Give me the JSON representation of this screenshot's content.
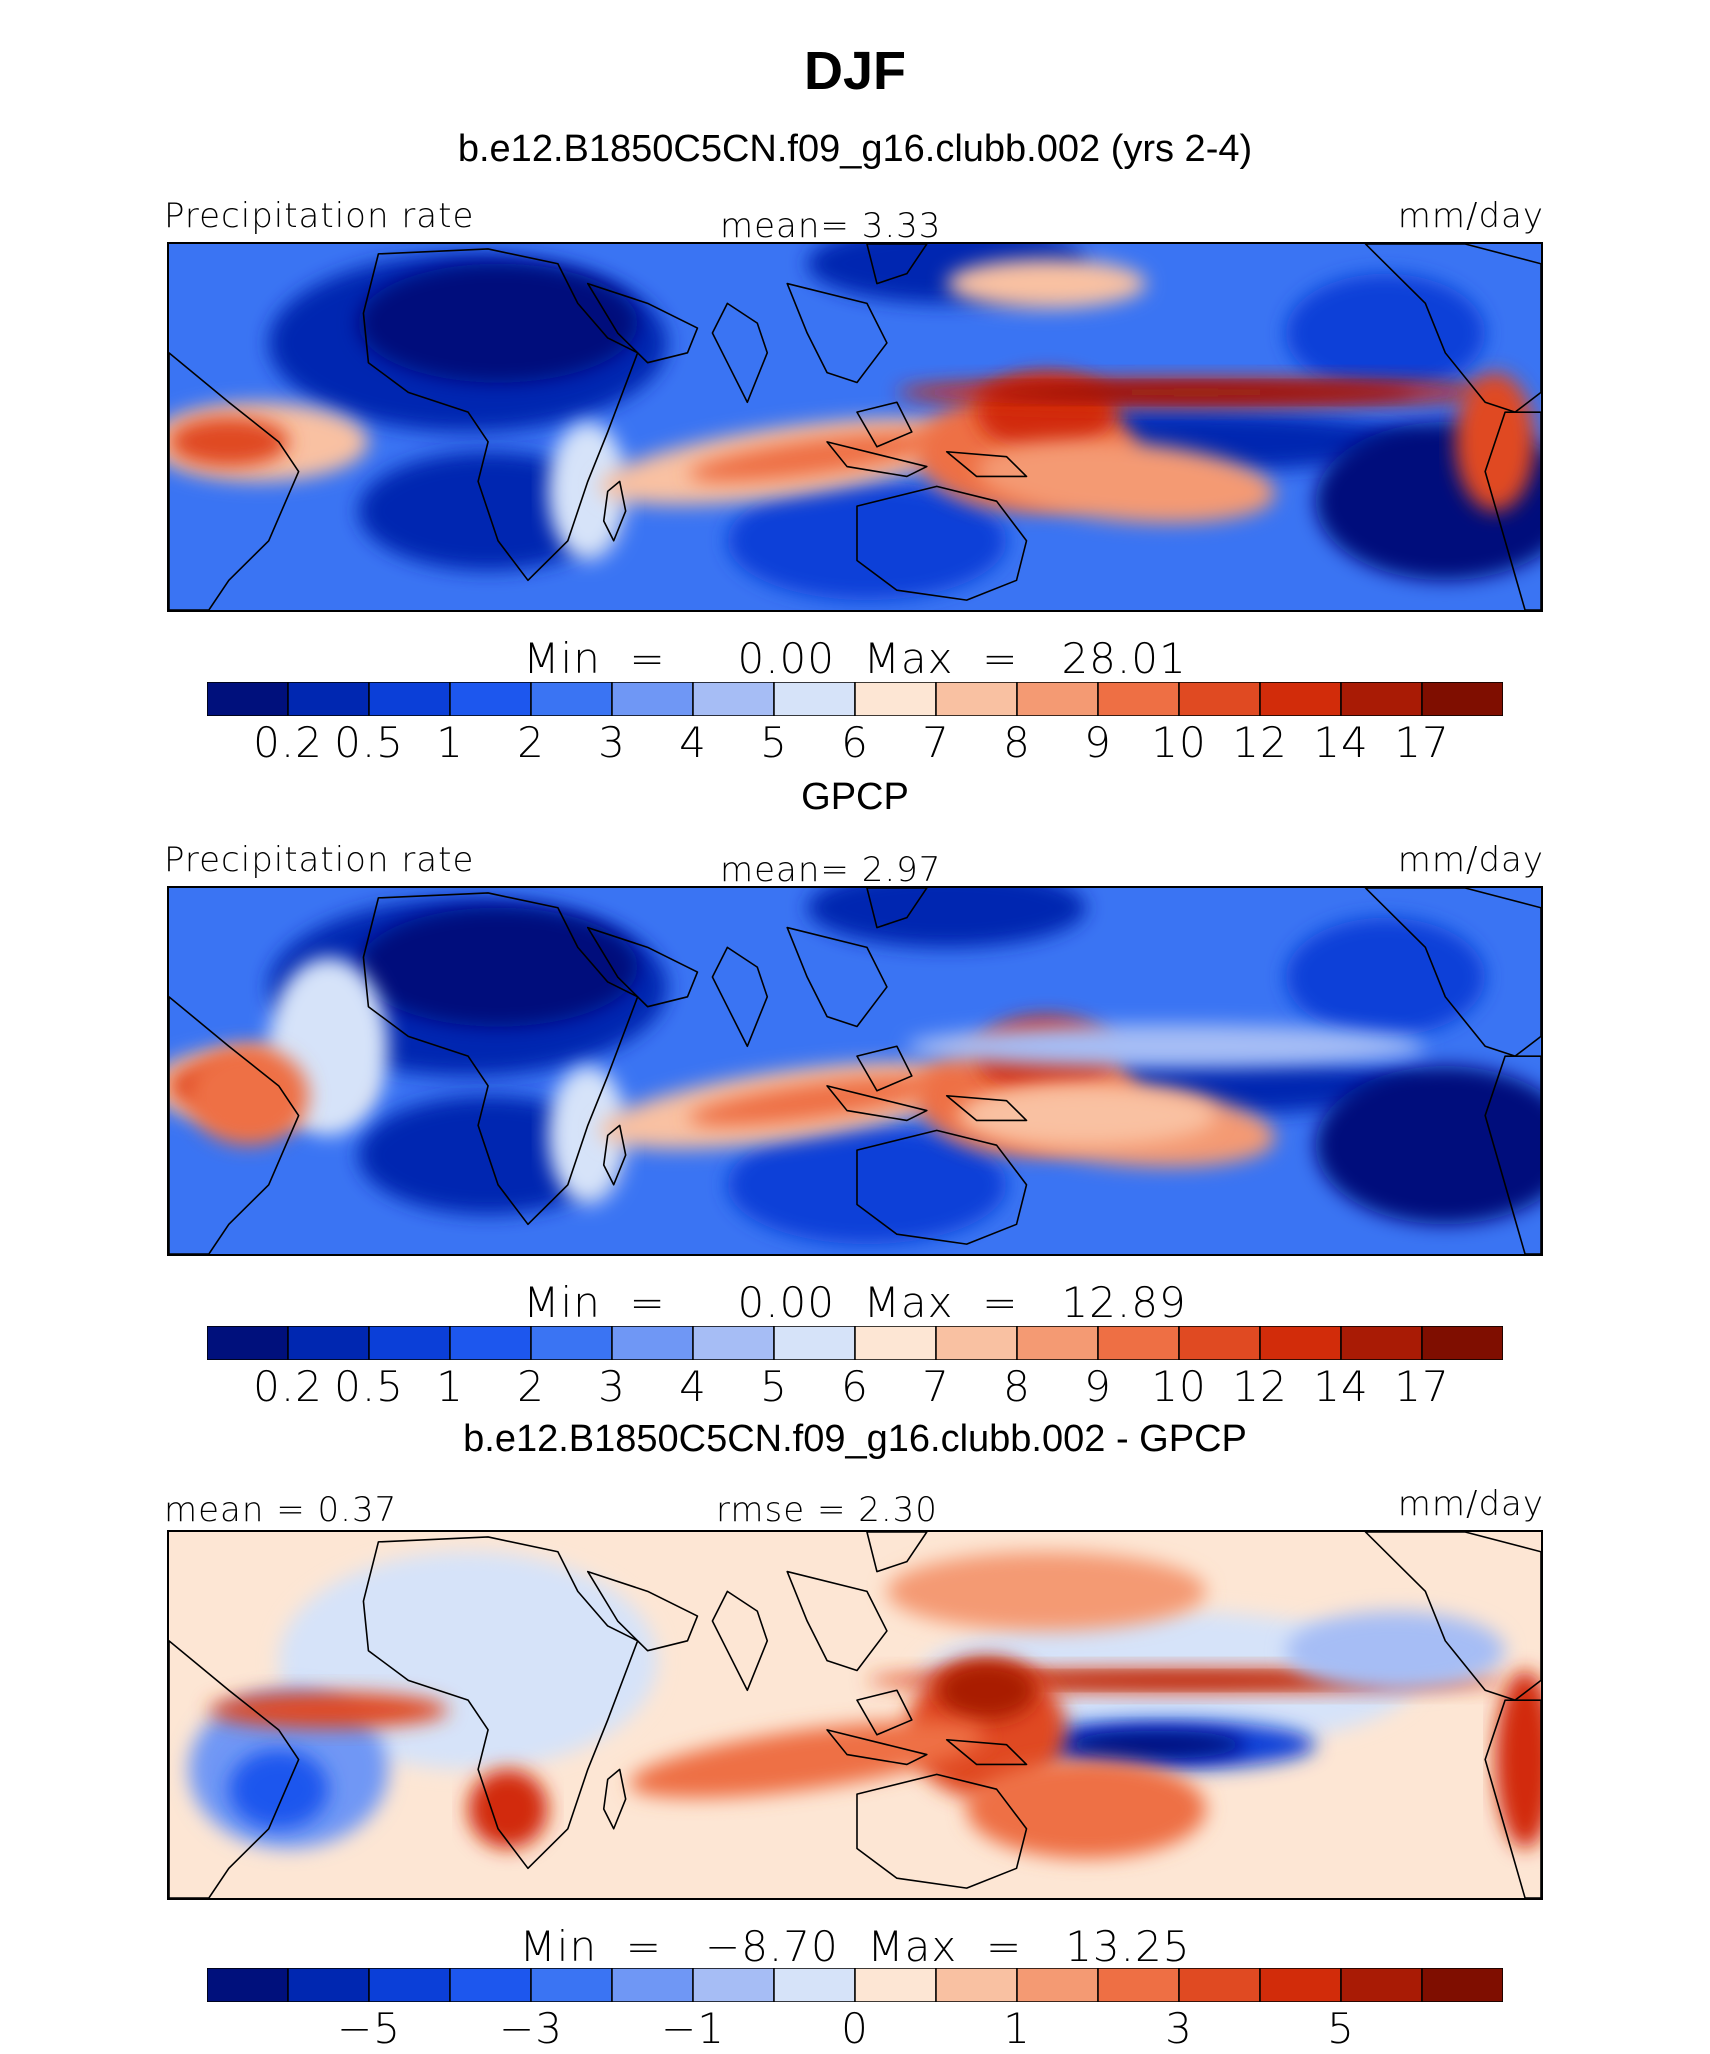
{
  "title": "DJF",
  "palette": [
    "#00107c",
    "#0027b1",
    "#0b3fd8",
    "#1d57ee",
    "#3a74f3",
    "#6f97f5",
    "#a6bdf5",
    "#d6e3f9",
    "#fde6d4",
    "#f9c1a2",
    "#f49a73",
    "#ee6f44",
    "#e04a22",
    "#d22c0a",
    "#a91b05",
    "#7f0e00"
  ],
  "coast_color": "#000000",
  "panels": [
    {
      "title": "b.e12.B1850C5CN.f09_g16.clubb.002 (yrs 2-4)",
      "left_label": "Precipitation  rate",
      "center_label": "mean=    3.33",
      "right_label": "mm/day",
      "stats": "Min  =     0.00  Max  =   28.01",
      "ticks": [
        "0.2",
        "0.5",
        "1",
        "2",
        "3",
        "4",
        "5",
        "6",
        "7",
        "8",
        "9",
        "10",
        "12",
        "14",
        "17"
      ]
    },
    {
      "title": "GPCP",
      "left_label": "Precipitation  rate",
      "center_label": "mean=    2.97",
      "right_label": "mm/day",
      "stats": "Min  =     0.00  Max  =   12.89",
      "ticks": [
        "0.2",
        "0.5",
        "1",
        "2",
        "3",
        "4",
        "5",
        "6",
        "7",
        "8",
        "9",
        "10",
        "12",
        "14",
        "17"
      ]
    },
    {
      "title": "b.e12.B1850C5CN.f09_g16.clubb.002 - GPCP",
      "left_label": "mean  =    0.37",
      "center_label": "rmse  =    2.30",
      "right_label": "mm/day",
      "stats": "Min  =   −8.70  Max  =   13.25",
      "ticks": [
        "−5",
        "−3",
        "−1",
        "0",
        "1",
        "3",
        "5"
      ]
    }
  ]
}
